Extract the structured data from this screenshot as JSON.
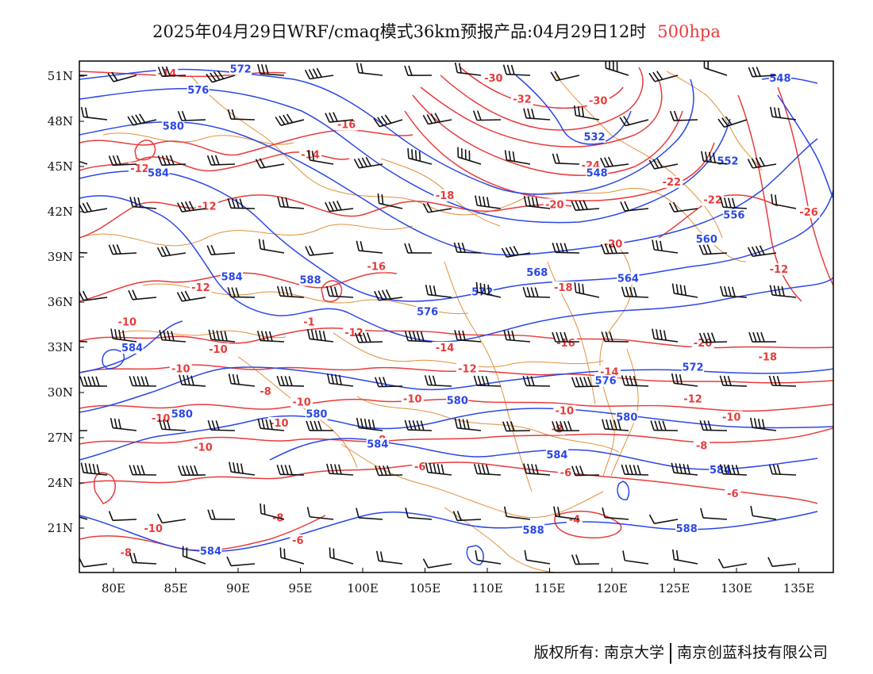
{
  "title": {
    "main": "2025年04月29日WRF/cmaq模式36km预报产品:04月29日12时",
    "level": "500hpa"
  },
  "colors": {
    "height_contour": "#2b47e6",
    "temperature_contour": "#e83b3b",
    "boundaries": "#e0903a",
    "wind_barb": "#111111"
  },
  "axes": {
    "lat_labels": [
      "51N",
      "48N",
      "45N",
      "42N",
      "39N",
      "36N",
      "33N",
      "30N",
      "27N",
      "24N",
      "21N"
    ],
    "lon_labels": [
      "80E",
      "85E",
      "90E",
      "95E",
      "100E",
      "105E",
      "110E",
      "115E",
      "120E",
      "125E",
      "130E",
      "135E"
    ]
  },
  "height_labels": [
    {
      "text": "572",
      "lon": 90.2,
      "lat": 51.4
    },
    {
      "text": "576",
      "lon": 86.8,
      "lat": 50.0
    },
    {
      "text": "580",
      "lon": 84.8,
      "lat": 47.6
    },
    {
      "text": "584",
      "lon": 83.6,
      "lat": 44.5
    },
    {
      "text": "584",
      "lon": 89.5,
      "lat": 37.6
    },
    {
      "text": "588",
      "lon": 95.8,
      "lat": 37.4
    },
    {
      "text": "576",
      "lon": 105.2,
      "lat": 35.3
    },
    {
      "text": "572",
      "lon": 109.6,
      "lat": 36.6
    },
    {
      "text": "568",
      "lon": 114.0,
      "lat": 37.9
    },
    {
      "text": "564",
      "lon": 121.3,
      "lat": 37.5
    },
    {
      "text": "560",
      "lon": 127.6,
      "lat": 40.1
    },
    {
      "text": "556",
      "lon": 129.8,
      "lat": 41.7
    },
    {
      "text": "552",
      "lon": 129.3,
      "lat": 45.3
    },
    {
      "text": "548",
      "lon": 133.5,
      "lat": 50.8
    },
    {
      "text": "548",
      "lon": 118.8,
      "lat": 44.5
    },
    {
      "text": "532",
      "lon": 118.6,
      "lat": 46.9
    },
    {
      "text": "584",
      "lon": 81.5,
      "lat": 32.9
    },
    {
      "text": "572",
      "lon": 126.5,
      "lat": 31.6
    },
    {
      "text": "576",
      "lon": 119.5,
      "lat": 30.7
    },
    {
      "text": "580",
      "lon": 85.5,
      "lat": 28.5
    },
    {
      "text": "580",
      "lon": 96.3,
      "lat": 28.5
    },
    {
      "text": "580",
      "lon": 107.6,
      "lat": 29.4
    },
    {
      "text": "580",
      "lon": 121.2,
      "lat": 28.3
    },
    {
      "text": "584",
      "lon": 101.2,
      "lat": 26.5
    },
    {
      "text": "584",
      "lon": 115.6,
      "lat": 25.8
    },
    {
      "text": "584",
      "lon": 128.7,
      "lat": 24.8
    },
    {
      "text": "588",
      "lon": 113.7,
      "lat": 20.8
    },
    {
      "text": "588",
      "lon": 126.0,
      "lat": 20.9
    },
    {
      "text": "584",
      "lon": 87.8,
      "lat": 19.4
    }
  ],
  "temperature_labels": [
    {
      "text": "-14",
      "lon": 84.3,
      "lat": 51.1
    },
    {
      "text": "-30",
      "lon": 110.5,
      "lat": 50.8
    },
    {
      "text": "-32",
      "lon": 112.8,
      "lat": 49.4
    },
    {
      "text": "-30",
      "lon": 118.9,
      "lat": 49.3
    },
    {
      "text": "-16",
      "lon": 98.7,
      "lat": 47.7
    },
    {
      "text": "-12",
      "lon": 82.1,
      "lat": 44.8
    },
    {
      "text": "-14",
      "lon": 95.8,
      "lat": 45.7
    },
    {
      "text": "-24",
      "lon": 118.3,
      "lat": 45.0
    },
    {
      "text": "-22",
      "lon": 124.8,
      "lat": 43.9
    },
    {
      "text": "-12",
      "lon": 87.5,
      "lat": 42.3
    },
    {
      "text": "-18",
      "lon": 106.6,
      "lat": 43.0
    },
    {
      "text": "-20",
      "lon": 115.4,
      "lat": 42.4
    },
    {
      "text": "-22",
      "lon": 128.1,
      "lat": 42.7
    },
    {
      "text": "-26",
      "lon": 135.8,
      "lat": 41.9
    },
    {
      "text": "-20",
      "lon": 120.1,
      "lat": 39.8
    },
    {
      "text": "-16",
      "lon": 101.1,
      "lat": 38.3
    },
    {
      "text": "-12",
      "lon": 133.4,
      "lat": 38.1
    },
    {
      "text": "-12",
      "lon": 87.0,
      "lat": 36.9
    },
    {
      "text": "-18",
      "lon": 116.1,
      "lat": 36.9
    },
    {
      "text": "-10",
      "lon": 81.1,
      "lat": 34.6
    },
    {
      "text": "-1",
      "lon": 95.7,
      "lat": 34.6
    },
    {
      "text": "-12",
      "lon": 99.3,
      "lat": 33.9
    },
    {
      "text": "-16",
      "lon": 116.3,
      "lat": 33.2
    },
    {
      "text": "-20",
      "lon": 127.3,
      "lat": 33.2
    },
    {
      "text": "-14",
      "lon": 106.6,
      "lat": 32.9
    },
    {
      "text": "-18",
      "lon": 132.5,
      "lat": 32.3
    },
    {
      "text": "-10",
      "lon": 88.4,
      "lat": 32.8
    },
    {
      "text": "-10",
      "lon": 85.4,
      "lat": 31.5
    },
    {
      "text": "-12",
      "lon": 108.4,
      "lat": 31.5
    },
    {
      "text": "-14",
      "lon": 119.8,
      "lat": 31.3
    },
    {
      "text": "-8",
      "lon": 92.2,
      "lat": 30.0
    },
    {
      "text": "-10",
      "lon": 95.1,
      "lat": 29.3
    },
    {
      "text": "-10",
      "lon": 104.0,
      "lat": 29.5
    },
    {
      "text": "-12",
      "lon": 126.5,
      "lat": 29.5
    },
    {
      "text": "-10",
      "lon": 116.2,
      "lat": 28.7
    },
    {
      "text": "-10",
      "lon": 129.6,
      "lat": 28.3
    },
    {
      "text": "-10",
      "lon": 83.8,
      "lat": 28.2
    },
    {
      "text": "-10",
      "lon": 93.3,
      "lat": 27.9
    },
    {
      "text": "-8",
      "lon": 115.6,
      "lat": 27.5
    },
    {
      "text": "-8",
      "lon": 101.4,
      "lat": 26.8
    },
    {
      "text": "-8",
      "lon": 127.2,
      "lat": 26.4
    },
    {
      "text": "-10",
      "lon": 87.2,
      "lat": 26.3
    },
    {
      "text": "-6",
      "lon": 104.6,
      "lat": 25.0
    },
    {
      "text": "-6",
      "lon": 116.3,
      "lat": 24.6
    },
    {
      "text": "-6",
      "lon": 129.7,
      "lat": 23.2
    },
    {
      "text": "-8",
      "lon": 93.2,
      "lat": 21.6
    },
    {
      "text": "-4",
      "lon": 117.0,
      "lat": 21.5
    },
    {
      "text": "-10",
      "lon": 83.2,
      "lat": 20.9
    },
    {
      "text": "-6",
      "lon": 94.8,
      "lat": 20.1
    },
    {
      "text": "-8",
      "lon": 81.0,
      "lat": 19.3
    }
  ],
  "credit": {
    "copyright": "版权所有: 南京大学",
    "company": "南京创蓝科技有限公司"
  }
}
